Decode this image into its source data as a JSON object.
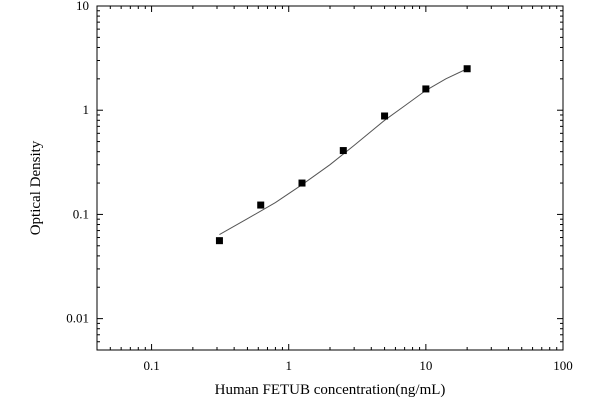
{
  "chart_data": {
    "type": "scatter",
    "xlabel": "Human FETUB concentration(ng/mL)",
    "ylabel": "Optical Density",
    "x_scale": "log",
    "y_scale": "log",
    "xlim": [
      0.04,
      100
    ],
    "ylim": [
      0.005,
      10
    ],
    "x_ticks": [
      {
        "value": 0.1,
        "label": "0.1"
      },
      {
        "value": 1,
        "label": "1"
      },
      {
        "value": 10,
        "label": "10"
      },
      {
        "value": 100,
        "label": "100"
      }
    ],
    "y_ticks": [
      {
        "value": 0.01,
        "label": "0.01"
      },
      {
        "value": 0.1,
        "label": "0.1"
      },
      {
        "value": 1,
        "label": "1"
      },
      {
        "value": 10,
        "label": "10"
      }
    ],
    "grid": false,
    "series": [
      {
        "marker": "square",
        "color": "#000000",
        "x": [
          0.3125,
          0.625,
          1.25,
          2.5,
          5,
          10,
          20
        ],
        "y": [
          0.056,
          0.123,
          0.2,
          0.41,
          0.88,
          1.6,
          2.5
        ]
      }
    ],
    "fit_curve": {
      "color": "#555555",
      "x": [
        0.3125,
        0.5,
        0.8,
        1.25,
        2,
        3,
        5,
        7,
        10,
        14,
        20
      ],
      "y": [
        0.064,
        0.091,
        0.13,
        0.193,
        0.3,
        0.46,
        0.8,
        1.1,
        1.55,
        2.0,
        2.5
      ]
    }
  }
}
